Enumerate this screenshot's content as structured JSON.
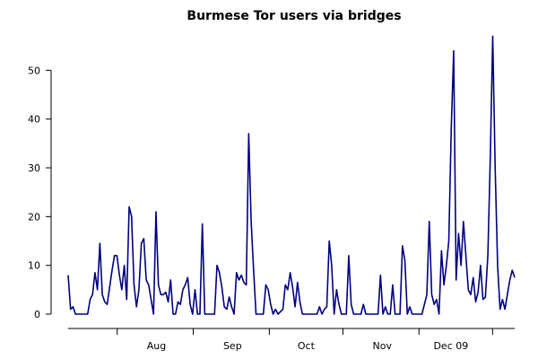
{
  "chart_data": {
    "type": "line",
    "title": "Burmese Tor users via bridges",
    "xlabel": "",
    "ylabel": "",
    "ylim": [
      0,
      56.5
    ],
    "yticks": [
      0,
      10,
      20,
      30,
      40,
      50
    ],
    "ytick_labels": [
      "0",
      "10",
      "20",
      "30",
      "40",
      "50"
    ],
    "x_range_days": [
      0,
      182
    ],
    "x_major_ticks": [
      {
        "day": 20
      },
      {
        "day": 51
      },
      {
        "day": 82
      },
      {
        "day": 112
      },
      {
        "day": 143
      },
      {
        "day": 173
      }
    ],
    "x_labels": [
      {
        "day": 36,
        "label": "Aug"
      },
      {
        "day": 67,
        "label": "Sep"
      },
      {
        "day": 97,
        "label": "Oct"
      },
      {
        "day": 128,
        "label": "Nov"
      },
      {
        "day": 156,
        "label": "Dec 09"
      }
    ],
    "grid": false,
    "legend": "none",
    "line_color": "#000080",
    "series": [
      {
        "values": [
          8,
          1,
          1.5,
          0,
          0,
          0,
          0,
          0,
          0,
          3,
          4,
          8.5,
          5,
          14.5,
          4,
          2.5,
          2,
          5.5,
          9,
          12,
          12,
          8,
          5,
          10,
          3,
          22,
          20,
          6,
          1.5,
          5,
          14.5,
          15.5,
          7,
          6,
          3,
          0,
          21,
          6,
          4,
          4,
          4.5,
          2.5,
          7,
          0,
          0,
          2.5,
          2,
          5,
          6,
          7.5,
          2,
          0,
          5,
          0,
          0,
          18.5,
          0,
          0,
          0,
          0,
          0,
          10,
          8.5,
          5.5,
          1.5,
          1,
          3.5,
          1.5,
          0,
          8.5,
          7,
          8,
          6.5,
          6,
          37,
          19,
          9,
          0,
          0,
          0,
          0,
          6,
          5,
          2,
          0,
          1,
          0,
          0.5,
          1,
          6,
          5,
          8.5,
          5.5,
          1.5,
          6.5,
          2.5,
          0,
          0,
          0,
          0,
          0,
          0,
          0,
          1.5,
          0,
          1,
          1.5,
          15,
          10,
          0,
          5,
          2,
          0,
          0,
          0,
          12,
          2,
          0,
          0,
          0,
          0,
          2,
          0,
          0,
          0,
          0,
          0,
          0,
          8,
          0,
          1.5,
          0,
          0,
          6,
          0,
          0,
          0,
          14,
          11,
          0,
          1.5,
          0,
          0,
          0,
          0,
          0,
          2,
          4,
          19,
          4,
          2,
          3,
          0,
          13,
          6,
          10,
          15,
          38,
          54,
          7,
          16.5,
          10,
          19,
          12,
          5,
          4,
          7.5,
          2.5,
          4.5,
          10,
          3,
          3.5,
          12,
          32,
          57,
          30,
          10,
          1,
          3,
          1,
          4,
          7,
          9,
          7.5
        ]
      }
    ]
  }
}
